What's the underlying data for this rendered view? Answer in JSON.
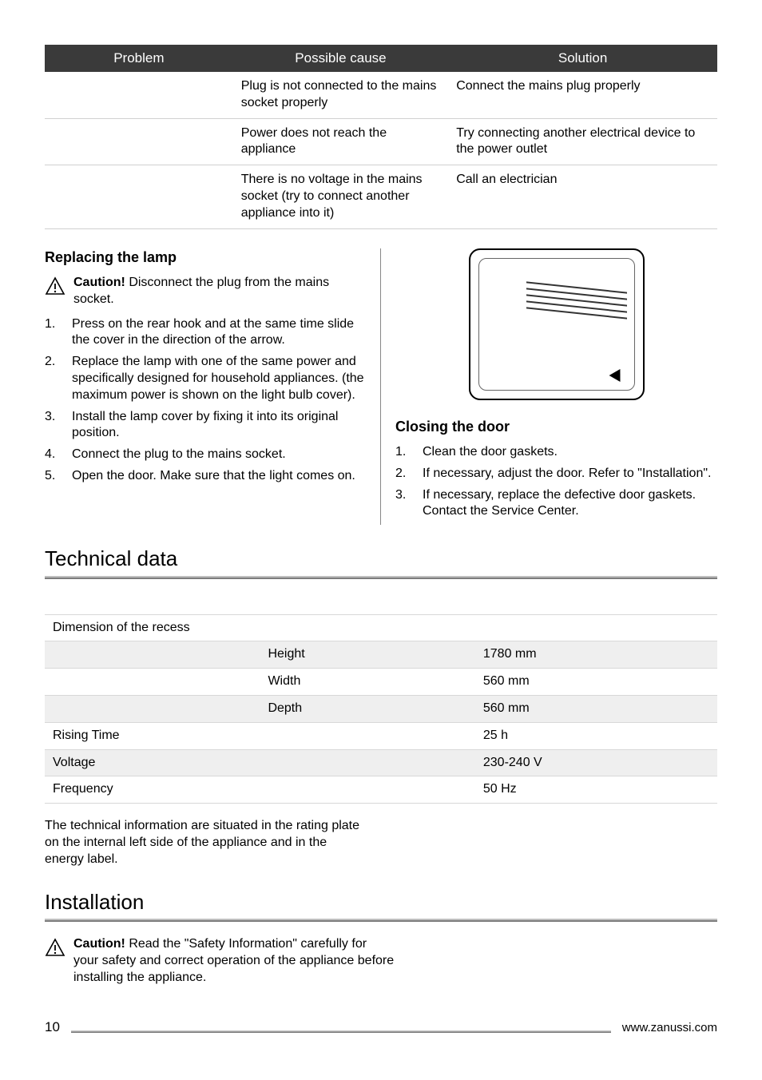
{
  "troubleshoot": {
    "headers": [
      "Problem",
      "Possible cause",
      "Solution"
    ],
    "rows": [
      {
        "problem": "",
        "cause": "Plug is not connected to the mains socket properly",
        "solution": "Connect the mains plug properly"
      },
      {
        "problem": "",
        "cause": "Power does not reach the appliance",
        "solution": "Try connecting another electrical device to the power outlet"
      },
      {
        "problem": "",
        "cause": "There is no voltage in the mains socket (try to connect another appliance into it)",
        "solution": "Call an electrician"
      }
    ]
  },
  "lamp": {
    "heading": "Replacing the lamp",
    "caution_label": "Caution!",
    "caution_text": " Disconnect the plug from the mains socket.",
    "steps": [
      "Press on the rear hook and at the same time slide the cover in the direction of the arrow.",
      "Replace the lamp with one of the same power and specifically designed for household appliances. (the maximum power is shown on the light bulb cover).",
      "Install the lamp cover by fixing it into its original position.",
      "Connect the plug to the mains socket.",
      "Open the door. Make sure that the light comes on."
    ]
  },
  "door": {
    "heading": "Closing the door",
    "steps": [
      "Clean the door gaskets.",
      "If necessary, adjust the door. Refer to \"Installation\".",
      "If necessary, replace the defective door gaskets. Contact the Service Center."
    ]
  },
  "tech": {
    "heading": "Technical data",
    "rows": [
      {
        "label": "Dimension of the recess",
        "attr": "",
        "val": "",
        "shade": false
      },
      {
        "label": "",
        "attr": "Height",
        "val": "1780 mm",
        "shade": true
      },
      {
        "label": "",
        "attr": "Width",
        "val": "560 mm",
        "shade": false
      },
      {
        "label": "",
        "attr": "Depth",
        "val": "560 mm",
        "shade": true
      },
      {
        "label": "Rising Time",
        "attr": "",
        "val": "25 h",
        "shade": false
      },
      {
        "label": "Voltage",
        "attr": "",
        "val": "230-240 V",
        "shade": true
      },
      {
        "label": "Frequency",
        "attr": "",
        "val": "50 Hz",
        "shade": false
      }
    ],
    "note": "The technical information are situated in the rating plate on the internal left side of the appliance and in the energy label."
  },
  "install": {
    "heading": "Installation",
    "caution_label": "Caution!",
    "caution_text": " Read the \"Safety Information\" carefully for your safety and correct operation of the appliance before installing the appliance."
  },
  "footer": {
    "page": "10",
    "url": "www.zanussi.com"
  },
  "style": {
    "header_bg": "#3a3a3a",
    "header_fg": "#ffffff",
    "row_border": "#d0d0d0",
    "shade_bg": "#efefef"
  }
}
